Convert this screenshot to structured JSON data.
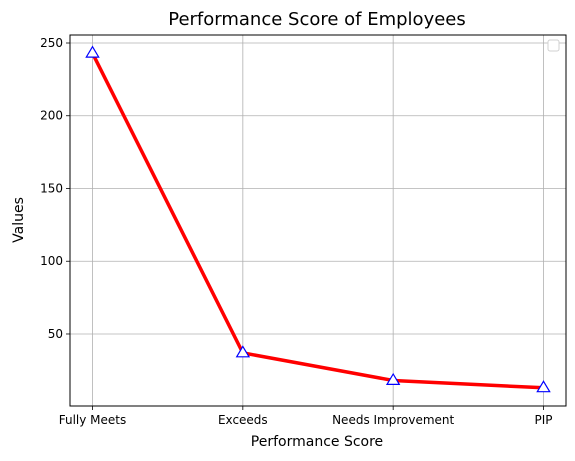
{
  "chart_data": {
    "type": "line",
    "title": "Performance Score of Employees",
    "xlabel": "Performance Score",
    "ylabel": "Values",
    "categories": [
      "Fully Meets",
      "Exceeds",
      "Needs Improvement",
      "PIP"
    ],
    "series": [
      {
        "values": [
          243,
          37,
          18,
          13
        ],
        "color": "#ff0000",
        "marker": "triangle-up",
        "marker_edge_color": "#0000ff"
      }
    ],
    "y_ticks": [
      50,
      100,
      150,
      200,
      250
    ],
    "ylim": [
      0.5,
      255.5
    ],
    "grid": true,
    "legend": {
      "placement": "top-right",
      "entries": []
    }
  }
}
